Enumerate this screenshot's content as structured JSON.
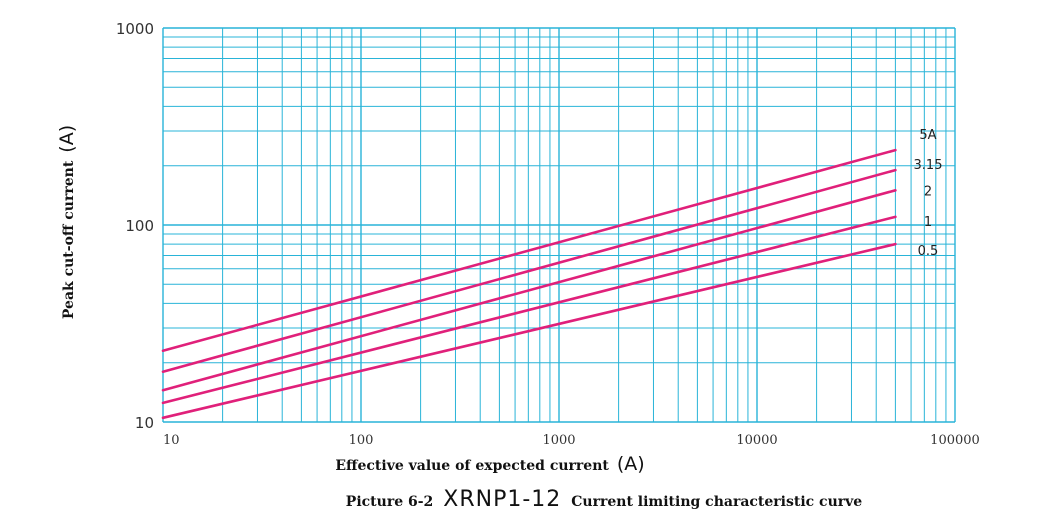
{
  "chart_data": {
    "type": "line",
    "x_scale": "log",
    "y_scale": "log",
    "xlim": [
      10,
      100000
    ],
    "ylim": [
      10,
      1000
    ],
    "x_ticks": [
      "10",
      "100",
      "1000",
      "10000",
      "100000"
    ],
    "y_ticks": [
      "10",
      "100",
      "1000"
    ],
    "grid": true,
    "xlabel": "Effective value of expected current",
    "xlabel_unit": "(A)",
    "ylabel": "Peak cut-off current",
    "ylabel_unit": "(A)",
    "caption_prefix": "Picture 6-2",
    "caption_model": "XRNP1-12",
    "caption_suffix": "Current limiting characteristic curve",
    "series": [
      {
        "name": "5A",
        "x": [
          10,
          50000
        ],
        "y": [
          23,
          240
        ]
      },
      {
        "name": "3.15",
        "x": [
          10,
          50000
        ],
        "y": [
          18,
          190
        ]
      },
      {
        "name": "2",
        "x": [
          10,
          50000
        ],
        "y": [
          14.5,
          150
        ]
      },
      {
        "name": "1",
        "x": [
          10,
          50000
        ],
        "y": [
          12.5,
          110
        ]
      },
      {
        "name": "0.5",
        "x": [
          10,
          50000
        ],
        "y": [
          10.5,
          80
        ]
      }
    ],
    "colors": {
      "curve": "#e0207a",
      "grid": "#29b4d8"
    }
  }
}
